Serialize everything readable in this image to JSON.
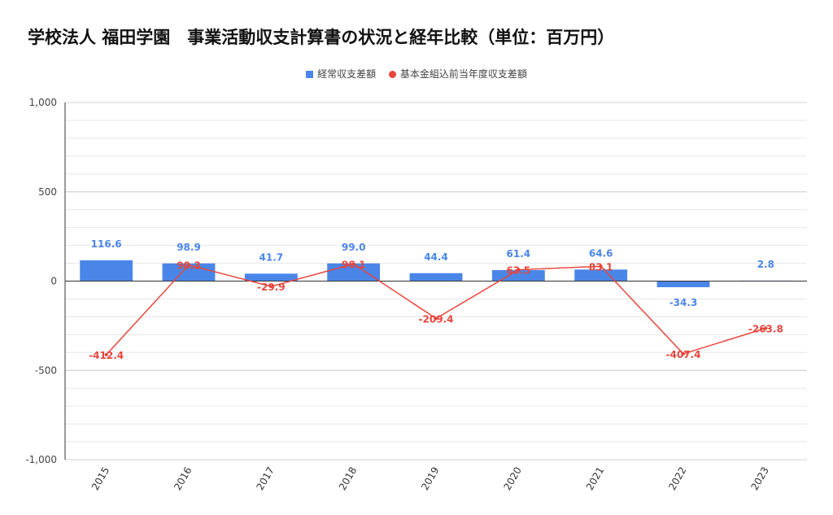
{
  "title": "学校法人 福田学園　事業活動収支計算書の状況と経年比較（単位：百万円）",
  "colors": {
    "bars": "#4a86e8",
    "line": "#e8453c",
    "grid": "#e6e6e6",
    "axis": "#333333"
  },
  "chart_data": {
    "type": "bar",
    "title": "学校法人 福田学園　事業活動収支計算書の状況と経年比較（単位：百万円）",
    "categories": [
      "2015",
      "2016",
      "2017",
      "2018",
      "2019",
      "2020",
      "2021",
      "2022",
      "2023"
    ],
    "series": [
      {
        "name": "経常収支差額",
        "type": "bar",
        "color": "#4a86e8",
        "values": [
          116.6,
          98.9,
          41.7,
          99.0,
          44.4,
          61.4,
          64.6,
          -34.3,
          2.8
        ],
        "labels": [
          "116.6",
          "98.9",
          "41.7",
          "99.0",
          "44.4",
          "61.4",
          "64.6",
          "-34.3",
          "2.8"
        ]
      },
      {
        "name": "基本金組込前当年度収支差額",
        "type": "line",
        "color": "#e8453c",
        "values": [
          -412.4,
          90.3,
          -29.9,
          96.1,
          -209.4,
          63.5,
          83.1,
          -407.4,
          -263.8
        ],
        "labels": [
          "-412.4",
          "90.3",
          "-29.9",
          "96.1",
          "-209.4",
          "63.5",
          "83.1",
          "-407.4",
          "-263.8"
        ]
      }
    ],
    "ylim": [
      -1000,
      1000
    ],
    "yticks": [
      1000,
      500,
      0,
      -500,
      -1000
    ],
    "ytick_labels": [
      "1,000",
      "500",
      "0",
      "-500",
      "-1,000"
    ],
    "xlabel": "",
    "ylabel": "",
    "grid": true,
    "legend": "top-center"
  }
}
